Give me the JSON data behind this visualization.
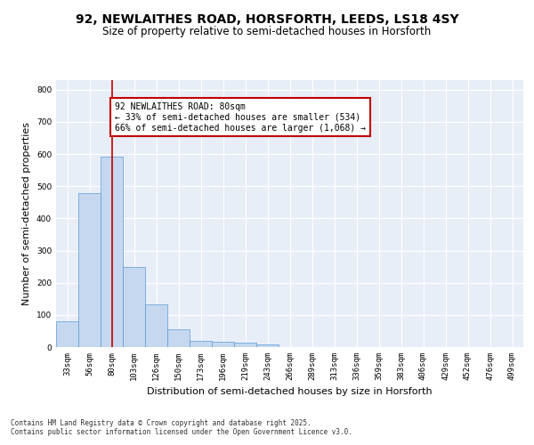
{
  "title": "92, NEWLAITHES ROAD, HORSFORTH, LEEDS, LS18 4SY",
  "subtitle": "Size of property relative to semi-detached houses in Horsforth",
  "xlabel": "Distribution of semi-detached houses by size in Horsforth",
  "ylabel": "Number of semi-detached properties",
  "categories": [
    "33sqm",
    "56sqm",
    "80sqm",
    "103sqm",
    "126sqm",
    "150sqm",
    "173sqm",
    "196sqm",
    "219sqm",
    "243sqm",
    "266sqm",
    "289sqm",
    "313sqm",
    "336sqm",
    "359sqm",
    "383sqm",
    "406sqm",
    "429sqm",
    "452sqm",
    "476sqm",
    "499sqm"
  ],
  "values": [
    80,
    480,
    593,
    250,
    133,
    55,
    20,
    17,
    13,
    9,
    0,
    0,
    0,
    0,
    0,
    0,
    0,
    0,
    0,
    0,
    0
  ],
  "bar_color": "#c5d8f0",
  "bar_edge_color": "#5b9bd5",
  "highlight_bar_index": 2,
  "highlight_line_color": "#c00000",
  "annotation_text": "92 NEWLAITHES ROAD: 80sqm\n← 33% of semi-detached houses are smaller (534)\n66% of semi-detached houses are larger (1,068) →",
  "annotation_box_color": "#c00000",
  "ylim": [
    0,
    830
  ],
  "yticks": [
    0,
    100,
    200,
    300,
    400,
    500,
    600,
    700,
    800
  ],
  "background_color": "#e8eef8",
  "grid_color": "#ffffff",
  "footer_text": "Contains HM Land Registry data © Crown copyright and database right 2025.\nContains public sector information licensed under the Open Government Licence v3.0.",
  "title_fontsize": 10,
  "subtitle_fontsize": 8.5,
  "axis_label_fontsize": 8,
  "tick_fontsize": 6.5,
  "annotation_fontsize": 7,
  "footer_fontsize": 5.5
}
